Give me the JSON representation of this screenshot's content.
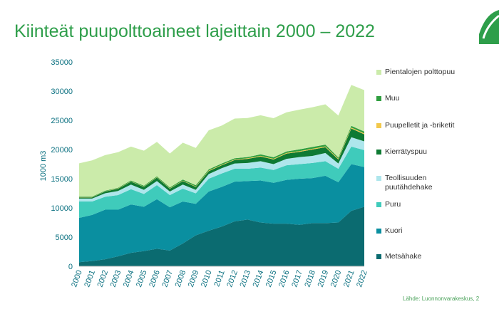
{
  "title": "Kiinteät puupolttoaineet lajeittain 2000 – 2022",
  "source": "Lähde: Luonnonvarakeskus, 2",
  "chart_data": {
    "type": "area",
    "stacked": true,
    "title": "Kiinteät puupolttoaineet lajeittain 2000 – 2022",
    "xlabel": "",
    "ylabel": "1000 m3",
    "ylim": [
      0,
      35000
    ],
    "yticks": [
      0,
      5000,
      10000,
      15000,
      20000,
      25000,
      30000,
      35000
    ],
    "ytick_labels": [
      "0",
      "5000",
      "10000",
      "15000",
      "20000",
      "25000",
      "30000",
      "35000"
    ],
    "grid": false,
    "legend": "right",
    "categories": [
      "2000",
      "2001",
      "2002",
      "2003",
      "2004",
      "2005",
      "2006",
      "2007",
      "2008",
      "2009",
      "2010",
      "2011",
      "2012",
      "2013",
      "2014",
      "2015",
      "2016",
      "2017",
      "2018",
      "2019",
      "2020",
      "2021",
      "2022"
    ],
    "series": [
      {
        "name": "Metsähake",
        "color": "#0b6b70",
        "values": [
          700,
          900,
          1200,
          1700,
          2300,
          2600,
          3000,
          2700,
          3900,
          5300,
          6100,
          6800,
          7700,
          8000,
          7500,
          7300,
          7300,
          7100,
          7400,
          7400,
          7500,
          9500,
          10200
        ]
      },
      {
        "name": "Kuori",
        "color": "#0a8fa0",
        "values": [
          7600,
          7900,
          8500,
          8000,
          8300,
          7600,
          8500,
          7400,
          7200,
          5400,
          6700,
          6800,
          6800,
          6600,
          7200,
          7000,
          7500,
          7900,
          7700,
          8100,
          6900,
          8000,
          6800
        ]
      },
      {
        "name": "Puru",
        "color": "#3fcbbb",
        "values": [
          2800,
          2300,
          2200,
          2500,
          2600,
          2200,
          2400,
          2100,
          2200,
          1800,
          2200,
          2300,
          2200,
          2100,
          2200,
          2200,
          2500,
          2500,
          2600,
          2500,
          2300,
          3000,
          2900
        ]
      },
      {
        "name": "Teollisuuden puutähdehake",
        "color": "#aee6ec",
        "values": [
          500,
          500,
          600,
          700,
          800,
          700,
          700,
          600,
          700,
          600,
          800,
          900,
          900,
          1000,
          1100,
          1000,
          1100,
          1200,
          1200,
          1400,
          900,
          1600,
          1500
        ]
      },
      {
        "name": "Kierrätyspuu",
        "color": "#0e7a33",
        "values": [
          200,
          200,
          300,
          400,
          500,
          500,
          600,
          500,
          600,
          500,
          500,
          500,
          600,
          700,
          800,
          800,
          900,
          900,
          1100,
          1000,
          700,
          1500,
          1200
        ]
      },
      {
        "name": "Puupelletit ja -briketit",
        "color": "#f2c84b",
        "values": [
          40,
          40,
          40,
          50,
          50,
          50,
          60,
          60,
          70,
          80,
          100,
          100,
          100,
          100,
          120,
          120,
          120,
          130,
          140,
          140,
          130,
          160,
          180
        ]
      },
      {
        "name": "Muu",
        "color": "#2f9e3f",
        "values": [
          100,
          100,
          100,
          100,
          150,
          150,
          150,
          150,
          200,
          200,
          200,
          200,
          200,
          200,
          250,
          250,
          250,
          300,
          300,
          300,
          200,
          300,
          300
        ]
      },
      {
        "name": "Pientalojen polttopuu",
        "color": "#cbebaa",
        "values": [
          5700,
          6200,
          6100,
          6100,
          5800,
          6000,
          5900,
          5800,
          6300,
          6400,
          6700,
          6500,
          6800,
          6700,
          6700,
          6700,
          6700,
          6800,
          6800,
          6900,
          7200,
          7000,
          7100
        ]
      }
    ]
  }
}
